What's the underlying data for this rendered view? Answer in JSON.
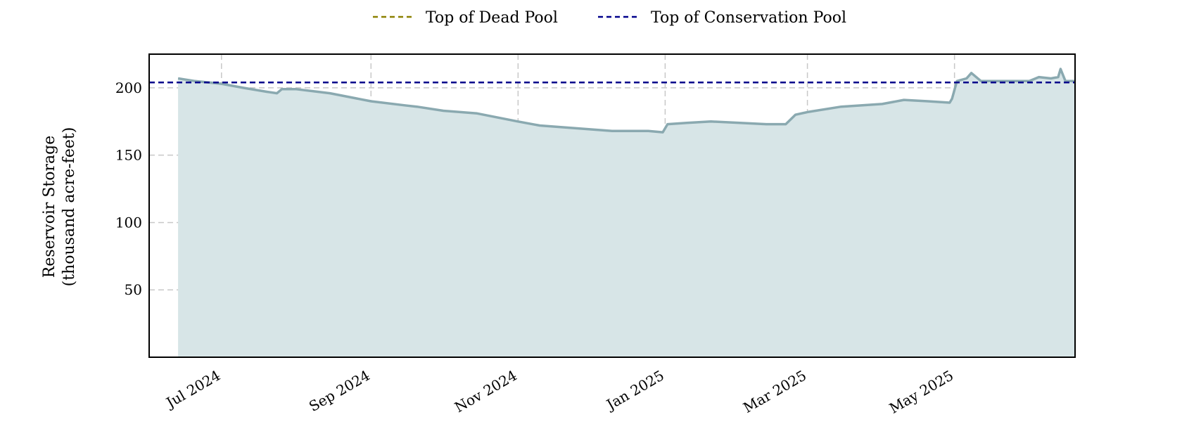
{
  "chart_data": {
    "type": "area",
    "title": "",
    "xlabel": "",
    "ylabel": [
      "Reservoir Storage",
      "(thousand acre-feet)"
    ],
    "ylim": [
      0,
      225
    ],
    "xlim": [
      "2024-06-01",
      "2025-06-20"
    ],
    "yticks": [
      50,
      100,
      150,
      200
    ],
    "xticks": [
      {
        "date": "2024-07-01",
        "label": "Jul 2024"
      },
      {
        "date": "2024-09-01",
        "label": "Sep 2024"
      },
      {
        "date": "2024-11-01",
        "label": "Nov 2024"
      },
      {
        "date": "2025-01-01",
        "label": "Jan 2025"
      },
      {
        "date": "2025-03-01",
        "label": "Mar 2025"
      },
      {
        "date": "2025-05-01",
        "label": "May 2025"
      }
    ],
    "grid": true,
    "legend_position": "top-center",
    "legend": [
      {
        "label": "Top of Dead Pool",
        "color": "#8b8000",
        "style": "dashed"
      },
      {
        "label": "Top of Conservation Pool",
        "color": "#00008b",
        "style": "dashed"
      }
    ],
    "reference_lines": {
      "top_of_conservation_pool": 204
    },
    "series": [
      {
        "style": "area",
        "line_color": "#8aa9b0",
        "fill_color": "#d7e5e7",
        "points": [
          [
            "2024-06-13",
            207
          ],
          [
            "2024-06-20",
            205
          ],
          [
            "2024-07-01",
            203
          ],
          [
            "2024-07-10",
            200
          ],
          [
            "2024-07-20",
            197
          ],
          [
            "2024-07-24",
            196
          ],
          [
            "2024-07-26",
            199
          ],
          [
            "2024-08-01",
            199
          ],
          [
            "2024-08-15",
            196
          ],
          [
            "2024-09-01",
            190
          ],
          [
            "2024-09-15",
            187
          ],
          [
            "2024-09-20",
            186
          ],
          [
            "2024-10-01",
            183
          ],
          [
            "2024-10-15",
            181
          ],
          [
            "2024-11-01",
            175
          ],
          [
            "2024-11-10",
            172
          ],
          [
            "2024-11-25",
            170
          ],
          [
            "2024-12-10",
            168
          ],
          [
            "2024-12-25",
            168
          ],
          [
            "2024-12-31",
            167
          ],
          [
            "2025-01-02",
            173
          ],
          [
            "2025-01-10",
            174
          ],
          [
            "2025-01-20",
            175
          ],
          [
            "2025-02-01",
            174
          ],
          [
            "2025-02-12",
            173
          ],
          [
            "2025-02-20",
            173
          ],
          [
            "2025-02-24",
            180
          ],
          [
            "2025-03-01",
            182
          ],
          [
            "2025-03-15",
            186
          ],
          [
            "2025-04-01",
            188
          ],
          [
            "2025-04-10",
            191
          ],
          [
            "2025-04-20",
            190
          ],
          [
            "2025-04-29",
            189
          ],
          [
            "2025-04-30",
            192
          ],
          [
            "2025-05-02",
            205
          ],
          [
            "2025-05-06",
            207
          ],
          [
            "2025-05-08",
            211
          ],
          [
            "2025-05-12",
            205
          ],
          [
            "2025-05-25",
            205
          ],
          [
            "2025-06-01",
            205
          ],
          [
            "2025-06-05",
            208
          ],
          [
            "2025-06-10",
            207
          ],
          [
            "2025-06-13",
            208
          ],
          [
            "2025-06-14",
            214
          ],
          [
            "2025-06-16",
            205
          ],
          [
            "2025-06-20",
            205
          ]
        ]
      }
    ]
  }
}
